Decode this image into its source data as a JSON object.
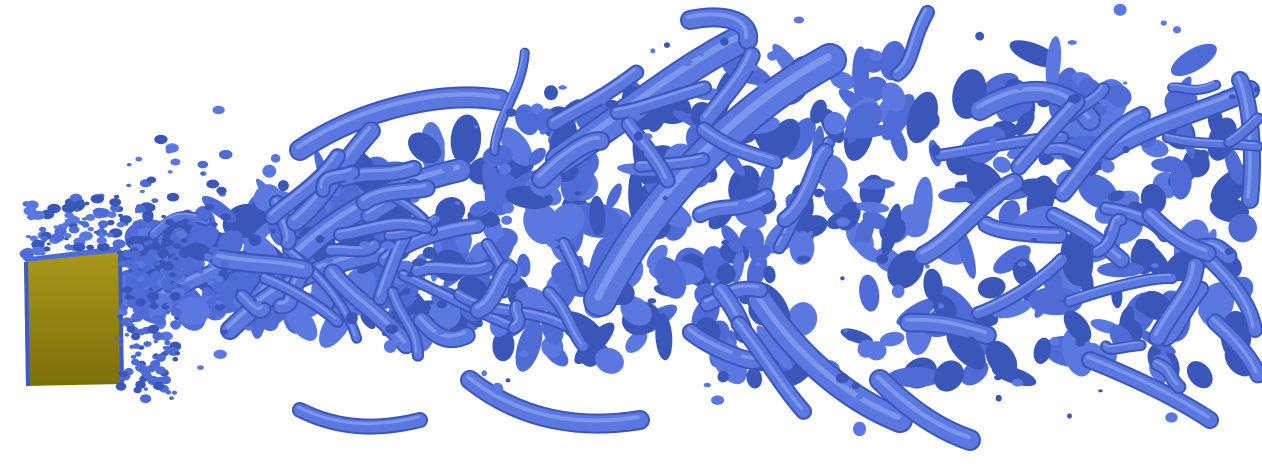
{
  "scene": {
    "kind": "3d-flow-visualization",
    "background_color": "#ffffff",
    "bluff_body": {
      "face_color": "#9a8a12",
      "face_dark": "#6f6408",
      "edge_color": "#3b5cc7"
    },
    "vortex_structures": {
      "fill": "#5a78e0",
      "mid": "#4f6cd6",
      "shade": "#3a56b8",
      "highlight": "#8aa2ef"
    }
  }
}
